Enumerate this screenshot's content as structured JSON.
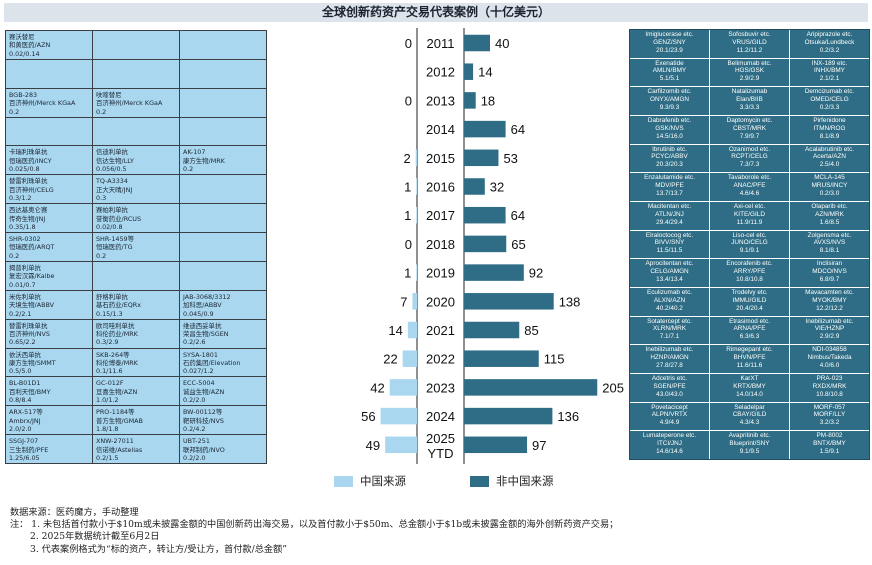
{
  "title": "全球创新药资产交易代表案例（十亿美元）",
  "left_deals": [
    [
      "赛沃替尼\n和黄医药/AZN\n0.02/0.14",
      "",
      ""
    ],
    [
      "",
      "",
      ""
    ],
    [
      "BGB-283\n百济神州/Merck KGaA\n0.2",
      "呋喹替尼\n百济神州/Merck KGaA\n0.2",
      ""
    ],
    [
      "",
      "",
      ""
    ],
    [
      "卡瑞利珠单抗\n恒瑞医药/INCY\n0.025/0.8",
      "信迪利单抗\n信达生物/LLY\n0.056/0.5",
      "AK-107\n康方生物/MRK\n0.2"
    ],
    [
      "替雷利珠单抗\n百济神州/CELG\n0.3/1.2",
      "TQ-A3334\n正大天晴/JNJ\n0.3",
      ""
    ],
    [
      "西达基奥仑赛\n传奇生物/JNJ\n0.35/1.8",
      "赛帕利单抗\n誉衡药业/RCUS\n0.02/0.8",
      ""
    ],
    [
      "SHR-0302\n恒瑞医药/ARQT\n0.2",
      "SHR-1459等\n恒瑞医药/TG\n0.2",
      ""
    ],
    [
      "揭普利单抗\n复宏汉霖/Kalbe\n0.01/0.7",
      "",
      ""
    ],
    [
      "米佐利单抗\n天境生物/ABBV\n0.2/2.1",
      "舒格利单抗\n基石药业/EQRx\n0.15/1.3",
      "JAB-3068/3312\n加科思/ABBV\n0.045/0.9"
    ],
    [
      "替雷利珠单抗\n百济神州/NVS\n0.65/2.2",
      "欧司哇利单抗\n科伦药业/MRK\n0.3/2.9",
      "维迪西妥单抗\n荣昌生物/SGEN\n0.2/2.6"
    ],
    [
      "依沃西单抗\n康方生物/SMMT\n0.5/5.0",
      "SKB-264等\n科伦博泰/MRK\n0.1/11.6",
      "SYSA-1801\n石药集团/Elevation\n0.027/1.2"
    ],
    [
      "BL-B01D1\n百利天恒/BMY\n0.8/8.4",
      "GC-012F\n亘喜生物/AZN\n1.0/1.2",
      "ECC-5004\n诚益生物/AZN\n0.2/2.0"
    ],
    [
      "ARX-517等\nAmbrx/JNJ\n2.0/2.0",
      "PRO-1184等\n普方生物/GMAB\n1.8/1.8",
      "BW-00112等\n靶研科技/NVS\n0.2/4.2"
    ],
    [
      "SSGJ-707\n三生制药/PFE\n1.25/6.05",
      "XNW-27011\n信诺维/Astellas\n0.2/1.5",
      "UBT-251\n联邦制药/NVO\n0.2/2.0"
    ]
  ],
  "right_deals": [
    [
      "Imiglucerase etc.\nGENZ/SNY\n20.1/23.9",
      "Sofosbuvir etc.\nVRUS/GILD\n11.2/11.2",
      "Aripiprazole etc.\nOtsuka/Lundbeck\n0.2/3.2"
    ],
    [
      "Exenatide\nAMLN/BMY\n5.1/5.1",
      "Belimumab etc.\nHGS/GSK\n2.9/2.9",
      "INX-189 etc.\nINHX/BMY\n2.1/2.1"
    ],
    [
      "Carfilzomib etc.\nONYX/AMGN\n9.3/9.3",
      "Natalizumab\nElan/BIIB\n3.3/3.3",
      "Demcizumab etc.\nOMED/CELG\n0.2/3.3"
    ],
    [
      "Dabrafenib etc.\nGSK/NVS\n14.5/16.0",
      "Daptomycin etc.\nCBST/MRK\n7.9/9.7",
      "Pirfenidone\nITMN/ROG\n8.1/8.9"
    ],
    [
      "Ibrutinib etc.\nPCYC/ABBV\n20.3/20.3",
      "Ozanimod etc.\nRCPT/CELG\n7.3/7.3",
      "Acalabrutinib etc.\nAcerta/AZN\n2.5/4.0"
    ],
    [
      "Enzalutamide etc.\nMDV/PFE\n13.7/13.7",
      "Tavaborole etc.\nANAC/PFE\n4.6/4.6",
      "MCLA-145\nMRUS/INCY\n0.2/3.0"
    ],
    [
      "Macitentan etc.\nATLN/JNJ\n29.4/29.4",
      "Axi-cel etc.\nKITE/GILD\n11.9/11.9",
      "Olaparib etc.\nAZN/MRK\n1.6/8.5"
    ],
    [
      "Elraloctocog etc.\nBIVV/SNY\n11.5/11.5",
      "Liso-cel etc.\nJUNO/CELG\n9.1/9.1",
      "Zolgensma etc.\nAVXS/NVS\n8.1/8.1"
    ],
    [
      "Aprocitentan etc.\nCELG/AMGN\n13.4/13.4",
      "Encorafenib etc.\nARRY/PFE\n10.8/10.8",
      "Inclisiran\nMDCO/NVS\n6.8/9.7"
    ],
    [
      "Eculizumab etc.\nALXN/AZN\n40.2/40.2",
      "Trodelvy etc.\nIMMU/GILD\n20.4/20.4",
      "Mavacamten etc.\nMYOK/BMY\n12.2/12.2"
    ],
    [
      "Sotatercept etc.\nXLRN/MRK\n7.1/7.1",
      "Etrasimod etc.\nARNA/PFE\n6.3/6.3",
      "Inebilizumab etc.\nVIE/HZNP\n2.9/2.9"
    ],
    [
      "Inebilizumab etc.\nHZNP/AMGN\n27.8/27.8",
      "Rimegepant etc.\nBHVN/PFE\n11.6/11.6",
      "NDI-034858\nNimbus/Takeda\n4.0/6.0"
    ],
    [
      "Adcetris etc.\nSGEN/PFE\n43.0/43.0",
      "KarXT\nKRTX/BMY\n14.0/14.0",
      "PRA-023\nRXDX/MRK\n10.8/10.8"
    ],
    [
      "Povetacicept\nALPN/VRTX\n4.9/4.9",
      "Seladelpar\nCBAY/GILD\n4.3/4.3",
      "MORF-057\nMORF/LLY\n3.2/3.2"
    ],
    [
      "Lumateperone etc.\nITCI/JNJ\n14.6/14.6",
      "Avapritinib etc.\nBlueprint/SNY\n9.1/9.5",
      "PM-8002\nBNTX/BMY\n1.5/9.1"
    ]
  ],
  "chart_data": {
    "type": "bar",
    "orientation": "horizontal-butterfly",
    "categories": [
      "2011",
      "2012",
      "2013",
      "2014",
      "2015",
      "2016",
      "2017",
      "2018",
      "2019",
      "2020",
      "2021",
      "2022",
      "2023",
      "2024",
      "2025\nYTD"
    ],
    "series": [
      {
        "name": "中国来源",
        "color": "#a9d7ef",
        "side": "left",
        "values": [
          0,
          null,
          0,
          null,
          2,
          1,
          1,
          0,
          1,
          7,
          14,
          22,
          42,
          56,
          49
        ]
      },
      {
        "name": "非中国来源",
        "color": "#2e6d85",
        "side": "right",
        "values": [
          40,
          14,
          18,
          64,
          53,
          32,
          64,
          65,
          92,
          138,
          85,
          115,
          205,
          136,
          97
        ]
      }
    ],
    "xlim": [
      0,
      210
    ],
    "legend_position": "bottom-center"
  },
  "notes": [
    "数据来源：医药魔方，手动整理",
    "注：  1. 未包括首付款小于$10m或未披露金额的中国创新药出海交易，以及首付款小于$50m、总金额小于$1b或未披露金额的海外创新药资产交易；",
    "2. 2025年数据统计截至6月2日",
    "3. 代表案例格式为“标的资产，转让方/受让方，首付款/总金额”"
  ]
}
